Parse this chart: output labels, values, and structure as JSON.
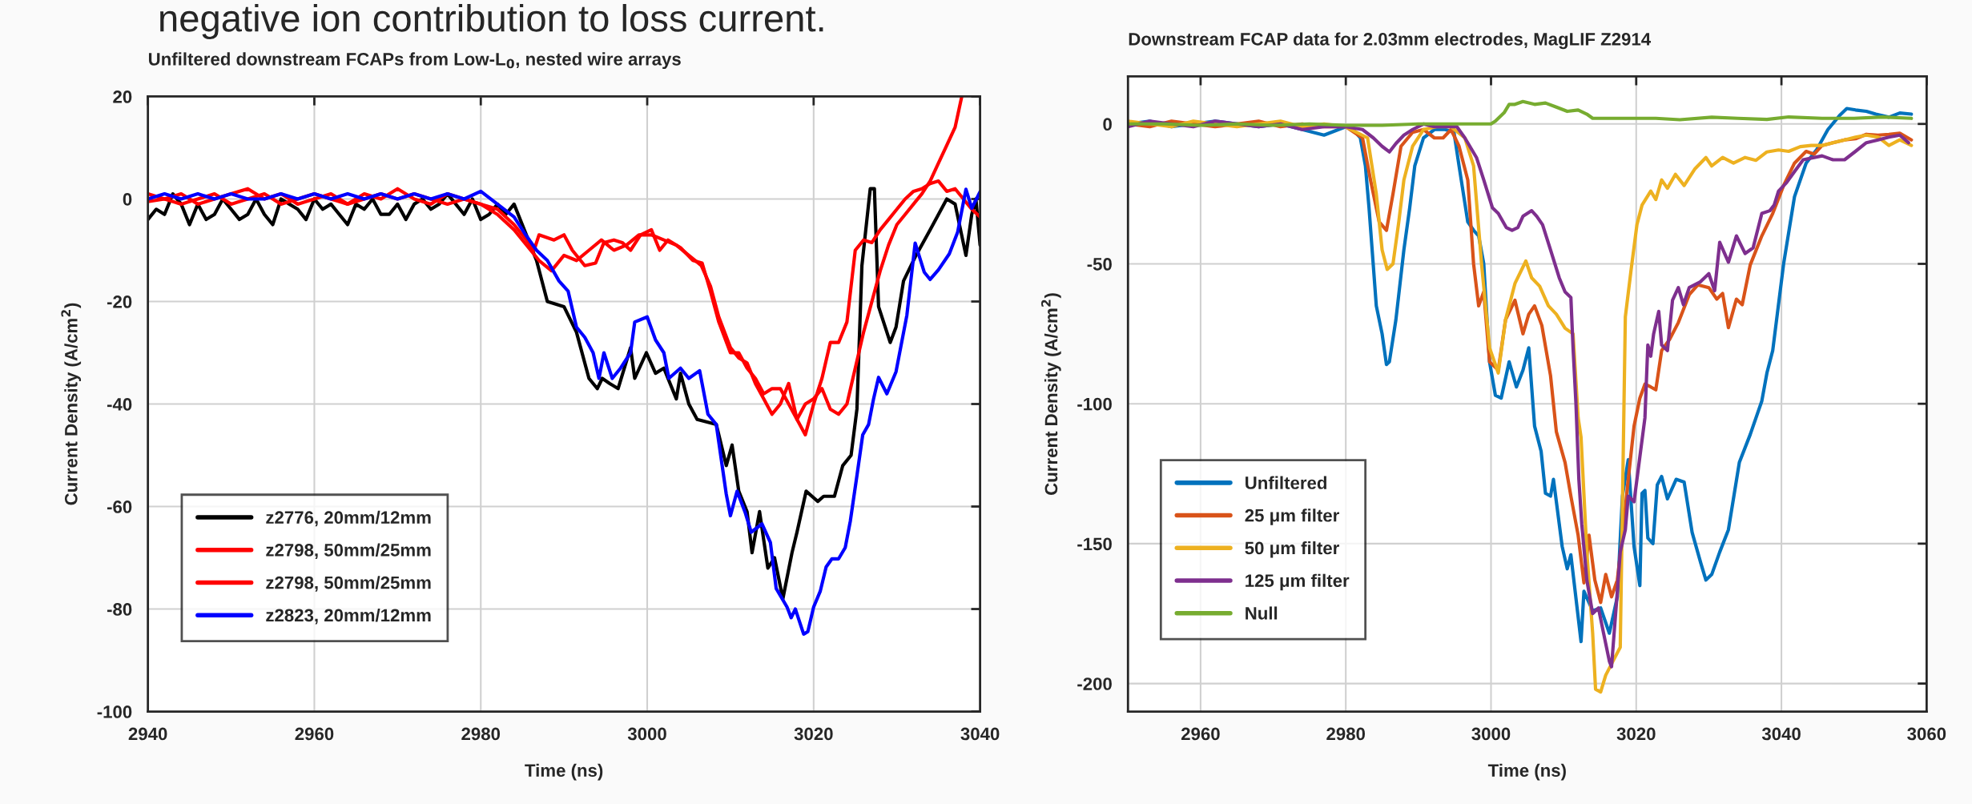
{
  "chart_data": [
    {
      "type": "line",
      "title": "Unfiltered downstream FCAPs from Low-L$_{0}$, nested wire arrays",
      "xlabel": "Time (ns)",
      "ylabel": "Current Density (A/cm$^{2}$)",
      "annotations": [
        "negative ion contribution to loss current."
      ],
      "xlim": [
        2940,
        3040
      ],
      "xticks": [
        2940,
        2960,
        2980,
        3000,
        3020,
        3040
      ],
      "ylim": [
        -100,
        20
      ],
      "yticks": [
        -100,
        -80,
        -60,
        -40,
        -20,
        0,
        20
      ],
      "grid": true,
      "legend": "bottom left",
      "series": [
        {
          "name": "z2776, 20mm/12mm",
          "color": "#000000",
          "x": [
            2940,
            2941,
            2942,
            2943,
            2944,
            2945,
            2946,
            2947,
            2948,
            2949,
            2950,
            2951,
            2952,
            2953,
            2954,
            2955,
            2956,
            2957,
            2958,
            2959,
            2960,
            2961,
            2962,
            2963,
            2964,
            2965,
            2966,
            2967,
            2968,
            2969,
            2970,
            2971,
            2972,
            2973,
            2974,
            2975,
            2976,
            2977,
            2978,
            2979,
            2980,
            2981,
            2982,
            2983,
            2984,
            2986.7,
            2988,
            2990,
            2991.5,
            2993,
            2994,
            2994.6,
            2995.5,
            2996.5,
            2998,
            2998.5,
            2999.9,
            3001,
            3002,
            3003.5,
            3004,
            3005,
            3006,
            3008.3,
            3009.5,
            3010.2,
            3011,
            3012,
            3012.6,
            3013.5,
            3014.5,
            3015.3,
            3016.3,
            3017.4,
            3018,
            3019.1,
            3020.5,
            3021.2,
            3022.5,
            3023.5,
            3024.5,
            3025.2,
            3025.8,
            3026.8,
            3027.3,
            3027.8,
            3029.2,
            3029.9,
            3030.8,
            3032.3,
            3034,
            3035,
            3036,
            3037,
            3038.3,
            3039,
            3039.5,
            3040
          ],
          "values": [
            -4,
            -2,
            -3,
            1,
            -1,
            -5,
            -1,
            -4,
            -3,
            0,
            -2,
            -4,
            -3,
            0,
            -3,
            -5,
            0,
            -1,
            -2,
            -4,
            0,
            -2,
            -1,
            -3,
            -5,
            -1,
            -2,
            0,
            -3,
            -3,
            -1,
            -4,
            -1,
            0,
            -2,
            -1,
            1,
            -1,
            -3,
            0,
            -4,
            -3,
            -1,
            -3,
            -1,
            -12,
            -20,
            -21,
            -26,
            -35,
            -37,
            -35,
            -36,
            -37,
            -29,
            -35,
            -30,
            -34,
            -33,
            -39,
            -34,
            -40,
            -43,
            -44,
            -52,
            -48,
            -57,
            -61,
            -69,
            -61,
            -72,
            -70,
            -78,
            -69,
            -65,
            -57,
            -59,
            -58,
            -58,
            -52,
            -50,
            -41,
            -13,
            2,
            2,
            -21,
            -28,
            -25,
            -16,
            -11,
            -6,
            -3,
            0,
            -1,
            -11,
            -3,
            0,
            -9
          ]
        },
        {
          "name": "z2798, 50mm/25mm",
          "color": "#ff0000",
          "x": [
            2940,
            2942,
            2944,
            2946,
            2948,
            2950,
            2952,
            2954,
            2956,
            2958,
            2960,
            2962,
            2964,
            2966,
            2968,
            2970,
            2972,
            2974,
            2976,
            2978,
            2980,
            2982,
            2984,
            2985.5,
            2986.4,
            2987,
            2988.8,
            2990,
            2991,
            2992.5,
            2993.8,
            2994.8,
            2996,
            2997,
            2998,
            2999.2,
            3000.5,
            3001.5,
            3002.5,
            3004,
            3005.5,
            3006.6,
            3007.6,
            3008.6,
            3010,
            3011,
            3012,
            3013,
            3014,
            3015,
            3016,
            3017,
            3018,
            3019,
            3020,
            3021,
            3022,
            3023,
            3024,
            3025,
            3026,
            3027,
            3028,
            3029,
            3030,
            3031,
            3032,
            3033,
            3034,
            3035,
            3036,
            3037,
            3037.8
          ],
          "values": [
            1,
            0,
            1,
            -1,
            0,
            1,
            2,
            0,
            1,
            -1,
            0,
            1,
            -1,
            1,
            0,
            2,
            0,
            -1,
            1,
            0,
            -1,
            -2,
            -5,
            -8,
            -10,
            -7,
            -8,
            -7,
            -10,
            -13,
            -12.5,
            -8.5,
            -8,
            -8.5,
            -10,
            -7,
            -6,
            -10,
            -8,
            -9.5,
            -12,
            -12.5,
            -18,
            -24,
            -30,
            -30,
            -33,
            -35,
            -38,
            -37,
            -37,
            -40,
            -43,
            -40,
            -39,
            -37,
            -41,
            -42,
            -40,
            -33,
            -26,
            -20,
            -14,
            -9,
            -5,
            -3,
            -1,
            1,
            3.5,
            7,
            10.5,
            14,
            20
          ]
        },
        {
          "name": "z2798, 50mm/25mm",
          "color": "#ff0000",
          "x": [
            2940,
            2942,
            2944,
            2946,
            2948,
            2950,
            2952,
            2954,
            2956,
            2958,
            2960,
            2962,
            2964,
            2966,
            2968,
            2970,
            2972,
            2974,
            2976,
            2978,
            2980,
            2982,
            2984,
            2986,
            2987,
            2988.5,
            2990,
            2991.5,
            2993,
            2994.5,
            2996,
            2997.5,
            2999,
            3000.5,
            3002,
            3003.5,
            3005,
            3006.5,
            3007.6,
            3008.6,
            3010,
            3011,
            3012,
            3013,
            3014,
            3015,
            3016,
            3017,
            3018,
            3019,
            3020,
            3021,
            3022,
            3023,
            3024,
            3025,
            3026,
            3027,
            3028,
            3029,
            3030,
            3031,
            3032,
            3033,
            3034,
            3035,
            3036,
            3037,
            3038,
            3039,
            3040
          ],
          "values": [
            -0.5,
            0,
            -1,
            0,
            1,
            -1,
            0,
            1,
            -1,
            0,
            1,
            0,
            -1,
            0,
            1,
            0,
            1,
            0,
            -1,
            0,
            -1,
            -3,
            -6,
            -10,
            -12,
            -14,
            -11,
            -12,
            -10,
            -8,
            -10,
            -9,
            -7,
            -7,
            -8,
            -9,
            -11,
            -13,
            -17,
            -23,
            -29,
            -31,
            -32,
            -36,
            -39,
            -42,
            -40,
            -36,
            -43,
            -46,
            -40,
            -35,
            -28,
            -28,
            -24,
            -10,
            -8,
            -8.5,
            -6,
            -4,
            -2,
            0,
            1.5,
            2,
            3,
            3.5,
            1.5,
            2,
            0,
            -2,
            -3.5
          ]
        },
        {
          "name": "z2823, 20mm/12mm",
          "color": "#0000ff",
          "x": [
            2940,
            2942,
            2944,
            2946,
            2948,
            2950,
            2952,
            2954,
            2956,
            2958,
            2960,
            2962,
            2964,
            2966,
            2968,
            2970,
            2972,
            2974,
            2976,
            2978,
            2980,
            2982,
            2984,
            2985.4,
            2986.7,
            2988,
            2989.4,
            2990.5,
            2991.5,
            2992.5,
            2993.5,
            2994.2,
            2994.8,
            2995.8,
            2996.8,
            2998,
            2998.5,
            3000,
            3001,
            3002,
            3002.6,
            3004,
            3005,
            3006.3,
            3007.3,
            3008.3,
            3009.5,
            3010,
            3010.8,
            3011.8,
            3012.5,
            3013.8,
            3014.8,
            3015.5,
            3016.8,
            3017.3,
            3017.8,
            3018.8,
            3019.3,
            3020,
            3020.8,
            3021.5,
            3022.2,
            3023,
            3023.8,
            3024.4,
            3025.2,
            3025.9,
            3026.6,
            3027.2,
            3027.8,
            3028.8,
            3029.9,
            3031.2,
            3032.2,
            3033.3,
            3034,
            3035,
            3036.3,
            3037.3,
            3038.3,
            3039,
            3040
          ],
          "values": [
            0,
            1,
            0,
            1,
            0,
            1,
            0,
            0,
            1,
            0,
            1,
            0,
            1,
            0,
            1,
            0,
            1,
            0,
            1,
            0,
            1.5,
            -1,
            -3.5,
            -7,
            -10,
            -12,
            -16,
            -18,
            -25,
            -27,
            -30,
            -35,
            -30,
            -35,
            -33,
            -30,
            -24,
            -23,
            -27.5,
            -30,
            -35,
            -33,
            -35,
            -33.5,
            -42,
            -44,
            -57.6,
            -61.8,
            -57,
            -61.3,
            -65,
            -63.4,
            -67,
            -76,
            -79.6,
            -81.7,
            -80,
            -84.9,
            -84.4,
            -79.6,
            -76.5,
            -71.8,
            -70.2,
            -70.2,
            -68,
            -62.9,
            -54,
            -46,
            -44,
            -39,
            -34.8,
            -38,
            -33.7,
            -22.7,
            -8.6,
            -14.3,
            -15.7,
            -13.8,
            -10.7,
            -6.5,
            1.9,
            -1.8,
            1.4
          ]
        }
      ]
    },
    {
      "type": "line",
      "title": "Downstream FCAP data for 2.03mm electrodes, MagLIF Z2914",
      "xlabel": "Time (ns)",
      "ylabel": "Current Density (A/cm$^{2}$)",
      "xlim": [
        2950,
        3060
      ],
      "xticks": [
        2960,
        2980,
        3000,
        3020,
        3040,
        3060
      ],
      "ylim": [
        -210,
        17
      ],
      "yticks": [
        -200,
        -150,
        -100,
        -50,
        0
      ],
      "grid": true,
      "legend": "bottom left",
      "series": [
        {
          "name": "Unfiltered",
          "color": "#0072bd",
          "x": [
            2950,
            2953,
            2956,
            2959,
            2962,
            2965,
            2968,
            2971,
            2974,
            2977,
            2980,
            2981,
            2982,
            2982.7,
            2983.2,
            2984.2,
            2985,
            2985.6,
            2986,
            2986.9,
            2988,
            2988.8,
            2989.5,
            2990.7,
            2992.2,
            2993.7,
            2994.9,
            2995.6,
            2996.8,
            2997.6,
            2998.3,
            2999,
            2999.8,
            3000.6,
            3001.4,
            3002.5,
            3003.5,
            3004.4,
            3005.2,
            3006,
            3006.9,
            3007.5,
            3008.2,
            3008.6,
            3009.8,
            3010.5,
            3011,
            3012.4,
            3012.8,
            3014,
            3015.1,
            3016.3,
            3017.4,
            3018.1,
            3018.9,
            3019.7,
            3020.5,
            3020.8,
            3021.2,
            3021.6,
            3022.3,
            3022.9,
            3023.5,
            3024.3,
            3025.5,
            3026.6,
            3027.7,
            3028.9,
            3029.6,
            3030.4,
            3031.5,
            3032.7,
            3034.2,
            3035.7,
            3037.3,
            3038,
            3038.8,
            3040.3,
            3041.8,
            3043.4,
            3044.9,
            3046.4,
            3048,
            3049,
            3050.2,
            3051.7,
            3053,
            3054.8,
            3056.3,
            3057.9
          ],
          "values": [
            0,
            1,
            -1,
            0,
            1,
            0,
            -1,
            0,
            -2,
            -4,
            -1,
            -2,
            -5,
            -15,
            -30,
            -65,
            -75,
            -86,
            -85,
            -70,
            -45,
            -30,
            -15,
            -5,
            -2,
            -2,
            -3,
            -15,
            -35,
            -38,
            -40,
            -50,
            -85,
            -97,
            -98,
            -85,
            -94,
            -88,
            -80,
            -108,
            -117,
            -132,
            -133,
            -127,
            -151,
            -159,
            -154,
            -185,
            -167,
            -174,
            -173,
            -182,
            -169,
            -133,
            -120,
            -151,
            -165,
            -132,
            -131,
            -148,
            -150,
            -129,
            -126,
            -134,
            -127,
            -128,
            -146,
            -157,
            -163,
            -161,
            -153,
            -145,
            -121,
            -111,
            -99,
            -89,
            -81,
            -50,
            -26,
            -14,
            -9,
            -2,
            3,
            5.5,
            5,
            4.5,
            3.5,
            2.4,
            3.9,
            3.5
          ]
        },
        {
          "name": "25 μm filter",
          "color": "#d95319",
          "x": [
            2950,
            2953,
            2956,
            2959,
            2962,
            2965,
            2968,
            2971,
            2974,
            2977,
            2980,
            2982.3,
            2983.4,
            2984.6,
            2985.6,
            2986.5,
            2987.6,
            2989.2,
            2990.7,
            2992.2,
            2993.4,
            2994.5,
            2995.6,
            2996.8,
            2997.6,
            2998.3,
            2999,
            2999.8,
            3001,
            3002,
            3003.3,
            3004.4,
            3005.2,
            3006,
            3007,
            3008.2,
            3009,
            3010.2,
            3011,
            3012,
            3012.8,
            3013.5,
            3014.3,
            3015.1,
            3015.8,
            3016.6,
            3017.4,
            3018.2,
            3018.9,
            3019.7,
            3020.5,
            3021.2,
            3022,
            3022.7,
            3023.5,
            3024.6,
            3025.8,
            3027.3,
            3028.5,
            3030,
            3031.1,
            3031.9,
            3032.7,
            3033.8,
            3034.6,
            3035.7,
            3037.3,
            3038.8,
            3040.3,
            3041.8,
            3043.4,
            3044.5,
            3045.6,
            3047.1,
            3048.7,
            3050.2,
            3051.7,
            3053.3,
            3054.8,
            3056.3,
            3057.9
          ],
          "values": [
            0,
            -1,
            1,
            0,
            -1,
            0,
            1,
            -1,
            0,
            -1,
            -1,
            -5,
            -20,
            -35,
            -38,
            -25,
            -8,
            -3,
            -2,
            -5,
            -5,
            -2,
            -8,
            -20,
            -50,
            -65,
            -60,
            -85,
            -88,
            -70,
            -63,
            -75,
            -68,
            -65,
            -72,
            -90,
            -110,
            -121,
            -133,
            -147,
            -164,
            -147,
            -163,
            -171,
            -161,
            -169,
            -163,
            -145,
            -127,
            -108,
            -98,
            -93,
            -94,
            -95,
            -81,
            -77,
            -71,
            -61,
            -57.5,
            -58.5,
            -62.6,
            -60.6,
            -72.8,
            -62.6,
            -64.6,
            -50.4,
            -40,
            -32,
            -22,
            -14,
            -9.8,
            -10.8,
            -7.7,
            -6.7,
            -5.7,
            -5.3,
            -3.7,
            -4,
            -3.7,
            -3.3,
            -5.7
          ]
        },
        {
          "name": "50 μm filter",
          "color": "#edb120",
          "x": [
            2950,
            2953,
            2956,
            2959,
            2962,
            2965,
            2968,
            2971,
            2974,
            2977,
            2980,
            2983,
            2984.2,
            2985,
            2985.7,
            2986.5,
            2987.3,
            2988,
            2989.2,
            2990.7,
            2992.5,
            2994.5,
            2996.4,
            2997.6,
            2998.7,
            2999.8,
            3001,
            3002,
            3003.3,
            3004.8,
            3005.6,
            3006.7,
            3007.9,
            3009,
            3010.2,
            3011.3,
            3012,
            3012.4,
            3013.2,
            3014,
            3014.4,
            3015.1,
            3015.8,
            3017,
            3017.8,
            3018.5,
            3019.3,
            3020.1,
            3020.8,
            3022,
            3022.7,
            3023.5,
            3024.3,
            3025.4,
            3026.6,
            3028.1,
            3029.6,
            3030.4,
            3031.9,
            3033.4,
            3035,
            3036.5,
            3038,
            3039.6,
            3041,
            3042.6,
            3044.1,
            3045.6,
            3047.1,
            3048.7,
            3050.2,
            3051.7,
            3053.3,
            3054.8,
            3056.3,
            3057.9
          ],
          "values": [
            1,
            0,
            -1,
            1,
            0,
            -1,
            0,
            1,
            -1,
            0,
            -1,
            -5,
            -25,
            -45,
            -52,
            -50,
            -35,
            -20,
            -8,
            -2,
            -1,
            -1,
            -5,
            -15,
            -50,
            -80,
            -89,
            -70,
            -57,
            -49,
            -55,
            -58,
            -65,
            -68,
            -73,
            -75,
            -105,
            -112,
            -153,
            -182,
            -202,
            -203,
            -197,
            -191,
            -187,
            -69,
            -52,
            -36,
            -29,
            -24,
            -27,
            -20,
            -23,
            -18,
            -22,
            -16,
            -12,
            -15,
            -12,
            -14,
            -12,
            -13,
            -10,
            -9.3,
            -9.8,
            -8.1,
            -7.7,
            -7.7,
            -6.7,
            -5.7,
            -4.7,
            -4,
            -4.7,
            -7.7,
            -5.7,
            -7.7
          ]
        },
        {
          "name": "125 μm filter",
          "color": "#7e2f8e",
          "x": [
            2950,
            2953,
            2956,
            2959,
            2962,
            2965,
            2968,
            2971,
            2974,
            2977,
            2980,
            2982.3,
            2983.8,
            2985,
            2986,
            2986.9,
            2988,
            2989.2,
            2990.7,
            2992.2,
            2993.7,
            2995.3,
            2996.4,
            2998,
            2999,
            3000.2,
            3001,
            3002.1,
            3002.9,
            3003.7,
            3004.4,
            3005.6,
            3006.3,
            3007.1,
            3008.2,
            3009.4,
            3010.2,
            3011,
            3011.3,
            3011.7,
            3012.1,
            3012.5,
            3013.2,
            3014,
            3014.8,
            3015.5,
            3016.3,
            3016.6,
            3017.4,
            3017.8,
            3018.5,
            3018.9,
            3019.7,
            3020.5,
            3021.2,
            3021.6,
            3022,
            3022.4,
            3023.1,
            3023.5,
            3024.3,
            3025,
            3025.8,
            3026.5,
            3027.3,
            3028.8,
            3030,
            3030.8,
            3031.5,
            3032.7,
            3033.8,
            3035,
            3036.1,
            3037.3,
            3038.4,
            3039,
            3039.6,
            3040.7,
            3041.8,
            3043,
            3045.6,
            3047.1,
            3048.7,
            3050.2,
            3051.7,
            3053.3,
            3054.8,
            3056.3,
            3057.5
          ],
          "values": [
            -1,
            1,
            0,
            -1,
            1,
            0,
            -1,
            0,
            -2,
            -1,
            -1,
            -2,
            -5,
            -8,
            -10,
            -7,
            -4,
            -2,
            0,
            -1,
            -1,
            -1,
            -5,
            -12,
            -20,
            -30,
            -32,
            -37,
            -38,
            -37,
            -33,
            -31,
            -33,
            -36,
            -45,
            -55,
            -60,
            -62,
            -80,
            -100,
            -127,
            -143,
            -163,
            -175,
            -173,
            -182,
            -192,
            -194,
            -167,
            -153,
            -145,
            -133,
            -135,
            -119,
            -105,
            -79,
            -83,
            -75,
            -67,
            -79,
            -81,
            -63,
            -58.5,
            -64.6,
            -58.5,
            -56.5,
            -53.5,
            -59.6,
            -42.3,
            -49.4,
            -40,
            -46.3,
            -44.3,
            -32,
            -31,
            -29,
            -24,
            -21,
            -17,
            -12.8,
            -11.4,
            -12.8,
            -12.8,
            -9.8,
            -6.7,
            -5.7,
            -4.7,
            -4,
            -6.7
          ]
        },
        {
          "name": "Null",
          "color": "#77ac30",
          "x": [
            2950,
            2955,
            2960,
            2965,
            2970,
            2975,
            2980,
            2985,
            2990,
            2995,
            3000,
            3000.6,
            3001.8,
            3002.5,
            3003.3,
            3004.4,
            3006,
            3007.5,
            3009,
            3010.5,
            3012,
            3013.2,
            3014,
            3015.1,
            3018,
            3022.7,
            3026,
            3030.4,
            3034,
            3038,
            3041,
            3045.6,
            3050,
            3054,
            3057.9
          ],
          "values": [
            0,
            0,
            -0.5,
            0,
            -0.5,
            0,
            -0.5,
            -0.5,
            0,
            0,
            0,
            1,
            4,
            7,
            7,
            8,
            7,
            7.5,
            6,
            4.5,
            5,
            3.5,
            2,
            2,
            2,
            2,
            1.5,
            2.4,
            2,
            1.6,
            2.5,
            2,
            2,
            2.5,
            2
          ]
        }
      ]
    }
  ]
}
